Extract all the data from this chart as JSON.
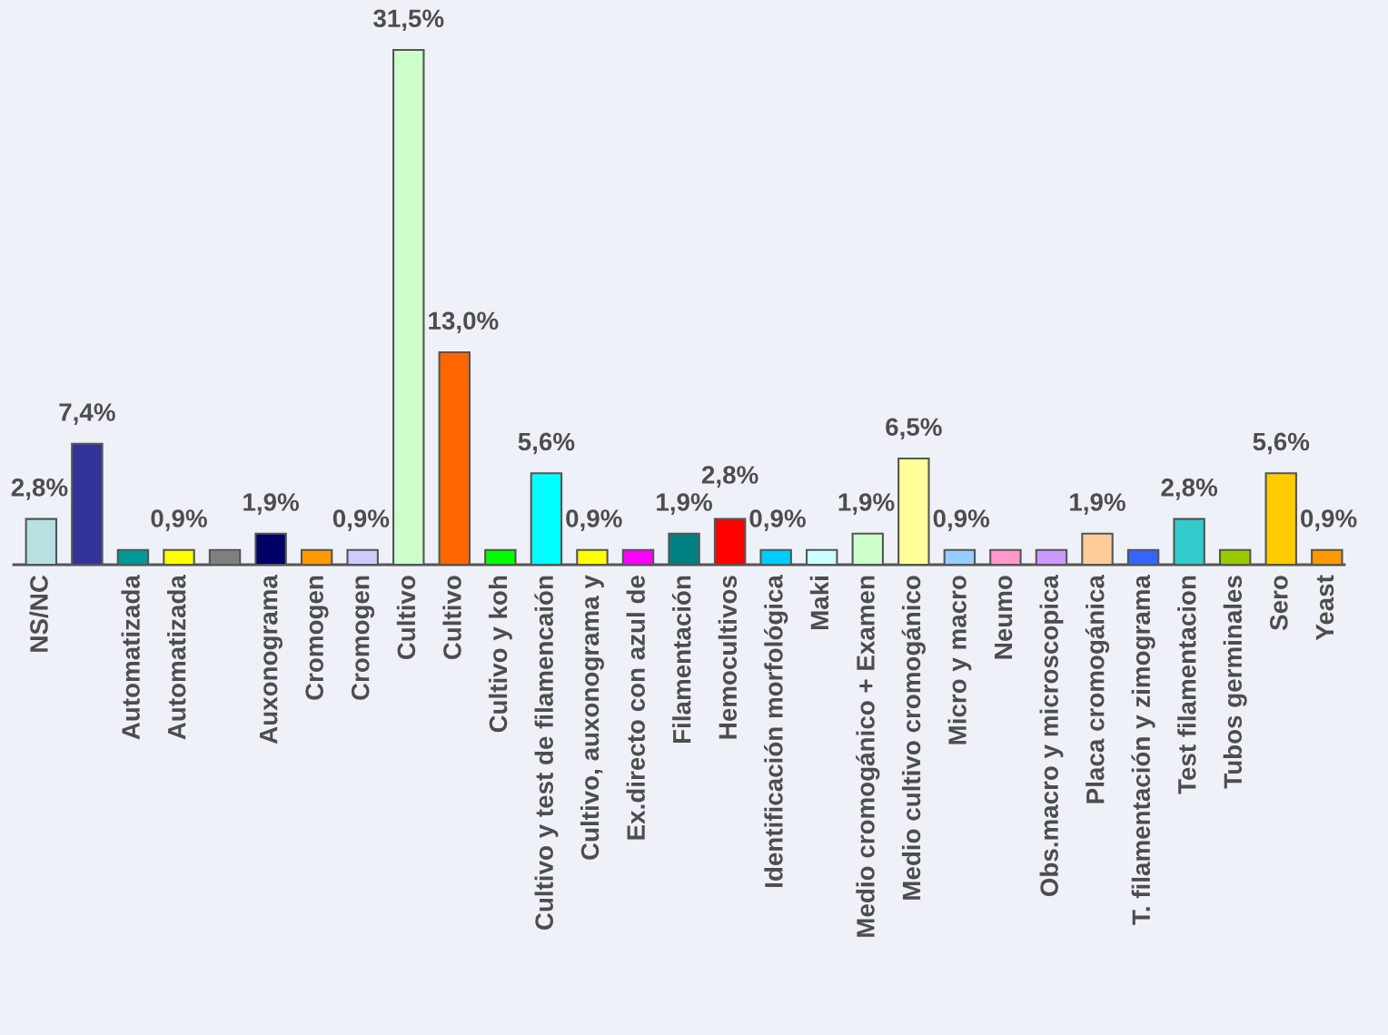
{
  "chart_data": {
    "type": "bar",
    "categories": [
      "NS/NC",
      null,
      "Automatizada",
      "Automatizada",
      null,
      "Auxonograma",
      "Cromogen",
      "Cromogen",
      "Cultivo",
      "Cultivo",
      "Cultivo y koh",
      "Cultivo y test de filamencaión",
      "Cultivo, auxonograma y",
      "Ex.directo con azul de",
      "Filamentación",
      "Hemocultivos",
      "Identificación morfológica",
      "Maki",
      "Medio cromogánico + Examen",
      "Medio cultivo cromogánico",
      "Micro y macro",
      "Neumo",
      "Obs.macro y microscopica",
      "Placa cromogánica",
      "T. filamentación y zimograma",
      "Test filamentacion",
      "Tubos germinales",
      "Sero",
      "Yeast"
    ],
    "values": [
      2.8,
      7.4,
      0.9,
      0.9,
      0.9,
      1.9,
      0.9,
      0.9,
      31.5,
      13.0,
      0.9,
      5.6,
      0.9,
      0.9,
      1.9,
      2.8,
      0.9,
      0.9,
      1.9,
      6.5,
      0.9,
      0.9,
      0.9,
      1.9,
      0.9,
      2.8,
      0.9,
      5.6,
      0.9
    ],
    "value_labels": [
      "2,8%",
      "7,4%",
      null,
      "0,9%",
      null,
      "1,9%",
      null,
      "0,9%",
      "31,5%",
      "13,0%",
      null,
      "5,6%",
      "0,9%",
      null,
      "1,9%",
      "2,8%",
      "0,9%",
      null,
      "1,9%",
      "6,5%",
      "0,9%",
      null,
      null,
      "1,9%",
      null,
      "2,8%",
      null,
      "5,6%",
      "0,9%"
    ],
    "colors": [
      "#b8e0e0",
      "#333399",
      "#009999",
      "#ffff00",
      "#808080",
      "#000066",
      "#ff9900",
      "#ccccff",
      "#ccffcc",
      "#ff6600",
      "#00ff00",
      "#00ffff",
      "#ffff00",
      "#ff00ff",
      "#008080",
      "#ff0000",
      "#00ccff",
      "#ccffff",
      "#ccffcc",
      "#ffff99",
      "#99ccff",
      "#ff99cc",
      "#cc99ff",
      "#ffcc99",
      "#3366ff",
      "#33cccc",
      "#99cc00",
      "#ffcc00",
      "#ff9900"
    ]
  }
}
